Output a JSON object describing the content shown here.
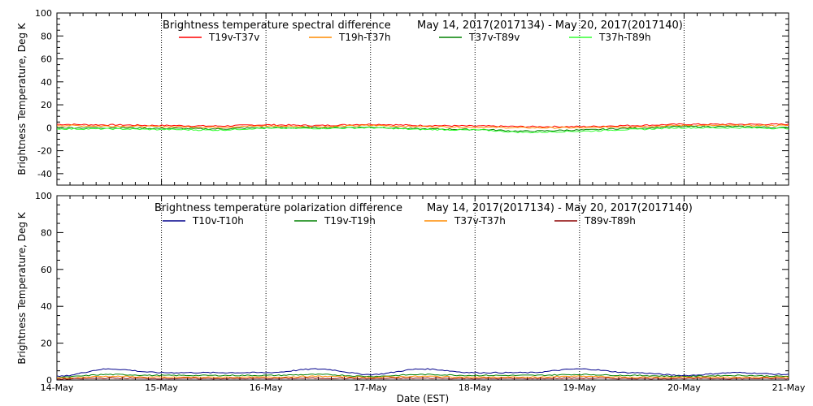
{
  "chart_data": [
    {
      "type": "line",
      "title": "Brightness temperature spectral difference",
      "date_range": "May 14, 2017(2017134) - May 20, 2017(2017140)",
      "ylabel": "Brightness Temperature, Deg K",
      "xlabel": "",
      "ylim": [
        -50,
        100
      ],
      "yticks": [
        -40,
        -20,
        0,
        20,
        40,
        60,
        80,
        100
      ],
      "xlim": [
        "2017-05-14",
        "2017-05-21"
      ],
      "x_tick_labels": [],
      "grid": "vertical dotted lines at each day",
      "legend_placement": "top",
      "series": [
        {
          "name": "T19v-T37v",
          "color": "#ff0000",
          "x": [
            "2017-05-14",
            "2017-05-14 12:00",
            "2017-05-15",
            "2017-05-15 12:00",
            "2017-05-16",
            "2017-05-16 12:00",
            "2017-05-17",
            "2017-05-17 12:00",
            "2017-05-18",
            "2017-05-18 12:00",
            "2017-05-19",
            "2017-05-19 12:00",
            "2017-05-20",
            "2017-05-20 12:00",
            "2017-05-21"
          ],
          "values": [
            3,
            2.5,
            2,
            1.5,
            2.5,
            2,
            3,
            2,
            1.5,
            1,
            1,
            2,
            3,
            3,
            3
          ]
        },
        {
          "name": "T19h-T37h",
          "color": "#ff8c00",
          "x": [
            "2017-05-14",
            "2017-05-14 12:00",
            "2017-05-15",
            "2017-05-15 12:00",
            "2017-05-16",
            "2017-05-16 12:00",
            "2017-05-17",
            "2017-05-17 12:00",
            "2017-05-18",
            "2017-05-18 12:00",
            "2017-05-19",
            "2017-05-19 12:00",
            "2017-05-20",
            "2017-05-20 12:00",
            "2017-05-21"
          ],
          "values": [
            2,
            1.5,
            1,
            0.5,
            1.5,
            1,
            2,
            1,
            0.5,
            0,
            0,
            1,
            2,
            2,
            2
          ]
        },
        {
          "name": "T37v-T89v",
          "color": "#008000",
          "x": [
            "2017-05-14",
            "2017-05-14 12:00",
            "2017-05-15",
            "2017-05-15 12:00",
            "2017-05-16",
            "2017-05-16 12:00",
            "2017-05-17",
            "2017-05-17 12:00",
            "2017-05-18",
            "2017-05-18 12:00",
            "2017-05-19",
            "2017-05-19 12:00",
            "2017-05-20",
            "2017-05-20 12:00",
            "2017-05-21"
          ],
          "values": [
            0,
            0,
            -0.5,
            -1,
            0,
            0,
            0.5,
            -1,
            -1.5,
            -3,
            -2,
            -0.5,
            1,
            1,
            0
          ]
        },
        {
          "name": "T37h-T89h",
          "color": "#33ff33",
          "x": [
            "2017-05-14",
            "2017-05-14 12:00",
            "2017-05-15",
            "2017-05-15 12:00",
            "2017-05-16",
            "2017-05-16 12:00",
            "2017-05-17",
            "2017-05-17 12:00",
            "2017-05-18",
            "2017-05-18 12:00",
            "2017-05-19",
            "2017-05-19 12:00",
            "2017-05-20",
            "2017-05-20 12:00",
            "2017-05-21"
          ],
          "values": [
            -1,
            -1,
            -1.5,
            -2,
            -0.5,
            -0.5,
            0,
            -1.5,
            -2,
            -4,
            -3,
            -1.5,
            0,
            0,
            -0.5
          ]
        }
      ]
    },
    {
      "type": "line",
      "title": "Brightness temperature polarization difference",
      "date_range": "May 14, 2017(2017134) - May 20, 2017(2017140)",
      "ylabel": "Brightness Temperature, Deg K",
      "xlabel": "Date (EST)",
      "ylim": [
        0,
        100
      ],
      "yticks": [
        0,
        20,
        40,
        60,
        80,
        100
      ],
      "xlim": [
        "2017-05-14",
        "2017-05-21"
      ],
      "x_tick_labels": [
        "14-May",
        "15-May",
        "16-May",
        "17-May",
        "18-May",
        "19-May",
        "20-May",
        "21-May"
      ],
      "grid": "vertical dotted lines at each day",
      "legend_placement": "top",
      "series": [
        {
          "name": "T10v-T10h",
          "color": "#00008b",
          "x": [
            "2017-05-14",
            "2017-05-14 12:00",
            "2017-05-15",
            "2017-05-15 12:00",
            "2017-05-16",
            "2017-05-16 12:00",
            "2017-05-17",
            "2017-05-17 12:00",
            "2017-05-18",
            "2017-05-18 12:00",
            "2017-05-19",
            "2017-05-19 12:00",
            "2017-05-20",
            "2017-05-20 12:00",
            "2017-05-21"
          ],
          "values": [
            2,
            6,
            4,
            4,
            4,
            6,
            3,
            6,
            4,
            4,
            6,
            4,
            2.5,
            4,
            3
          ]
        },
        {
          "name": "T19v-T19h",
          "color": "#008000",
          "x": [
            "2017-05-14",
            "2017-05-14 12:00",
            "2017-05-15",
            "2017-05-15 12:00",
            "2017-05-16",
            "2017-05-16 12:00",
            "2017-05-17",
            "2017-05-17 12:00",
            "2017-05-18",
            "2017-05-18 12:00",
            "2017-05-19",
            "2017-05-19 12:00",
            "2017-05-20",
            "2017-05-20 12:00",
            "2017-05-21"
          ],
          "values": [
            1.5,
            3,
            2.5,
            2.5,
            2.5,
            3,
            2,
            3,
            2.5,
            2.5,
            3,
            2.5,
            2,
            2.5,
            2
          ]
        },
        {
          "name": "T37v-T37h",
          "color": "#ff8c00",
          "x": [
            "2017-05-14",
            "2017-05-14 12:00",
            "2017-05-15",
            "2017-05-15 12:00",
            "2017-05-16",
            "2017-05-16 12:00",
            "2017-05-17",
            "2017-05-17 12:00",
            "2017-05-18",
            "2017-05-18 12:00",
            "2017-05-19",
            "2017-05-19 12:00",
            "2017-05-20",
            "2017-05-20 12:00",
            "2017-05-21"
          ],
          "values": [
            1,
            2,
            1.5,
            1.5,
            1.5,
            2,
            1.5,
            2,
            1.5,
            1.5,
            2,
            1.5,
            1.5,
            1.5,
            1.5
          ]
        },
        {
          "name": "T89v-T89h",
          "color": "#8b0000",
          "x": [
            "2017-05-14",
            "2017-05-14 12:00",
            "2017-05-15",
            "2017-05-15 12:00",
            "2017-05-16",
            "2017-05-16 12:00",
            "2017-05-17",
            "2017-05-17 12:00",
            "2017-05-18",
            "2017-05-18 12:00",
            "2017-05-19",
            "2017-05-19 12:00",
            "2017-05-20",
            "2017-05-20 12:00",
            "2017-05-21"
          ],
          "values": [
            0.5,
            1,
            0.8,
            0.8,
            0.8,
            1,
            0.8,
            1,
            0.8,
            0.8,
            1,
            0.8,
            0.8,
            0.8,
            0.8
          ]
        }
      ]
    }
  ]
}
